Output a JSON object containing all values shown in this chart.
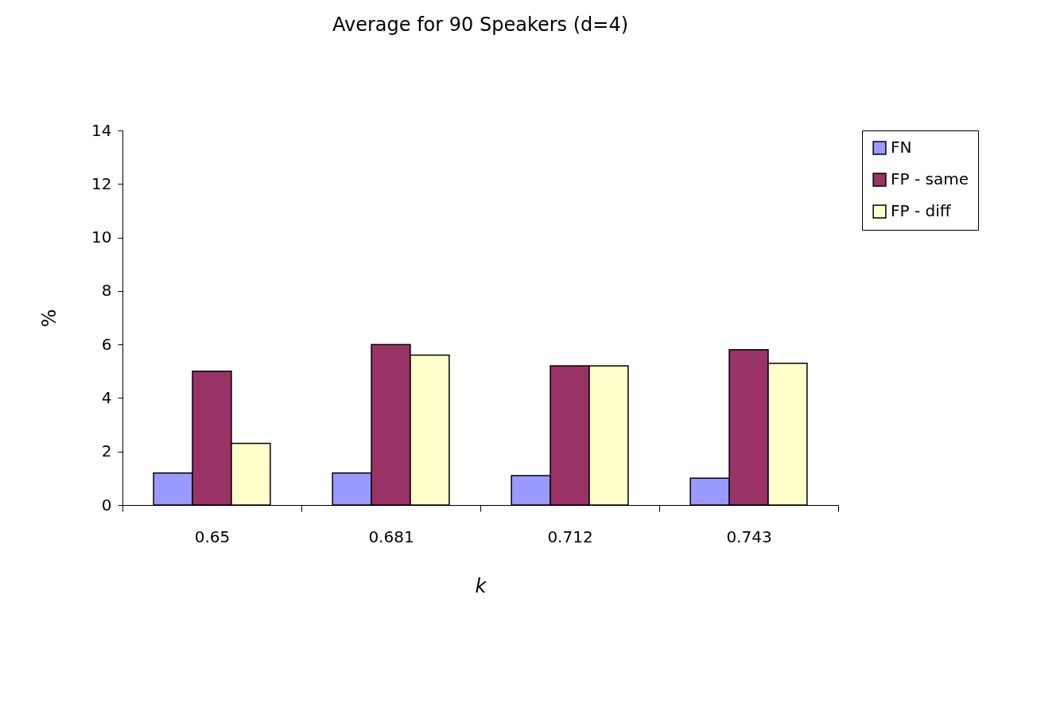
{
  "chart_data": {
    "type": "bar",
    "title": "Average for 90 Speakers (d=4)",
    "xlabel": "k",
    "ylabel": "%",
    "categories": [
      "0.65",
      "0.681",
      "0.712",
      "0.743"
    ],
    "series": [
      {
        "name": "FN",
        "color": "#9999ff",
        "values": [
          1.2,
          1.2,
          1.1,
          1.0
        ]
      },
      {
        "name": "FP - same",
        "color": "#993366",
        "values": [
          5.0,
          6.0,
          5.2,
          5.8
        ]
      },
      {
        "name": "FP - diff",
        "color": "#ffffcc",
        "values": [
          2.3,
          5.6,
          5.2,
          5.3
        ]
      }
    ],
    "ylim": [
      0,
      14
    ],
    "yticks": [
      0,
      2,
      4,
      6,
      8,
      10,
      12,
      14
    ],
    "grid": false,
    "legend": "right"
  }
}
